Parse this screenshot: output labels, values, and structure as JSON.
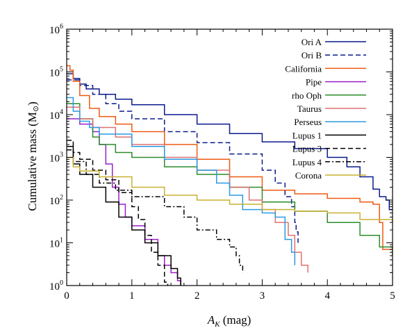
{
  "chart_data": {
    "type": "line",
    "title": "",
    "xlabel": "A",
    "xlabel_sub": "K",
    "xlabel_unit": " (mag)",
    "ylabel": "Cumulative mass (M",
    "ylabel_sun": "⊙",
    "ylabel_close": ")",
    "xlim": [
      0,
      5
    ],
    "ylim": [
      1,
      1000000
    ],
    "yscale": "log",
    "grid": false,
    "legend_position": "top-right",
    "x_ticks": [
      {
        "v": 0,
        "label": "0"
      },
      {
        "v": 1,
        "label": "1"
      },
      {
        "v": 2,
        "label": "2"
      },
      {
        "v": 3,
        "label": "3"
      },
      {
        "v": 4,
        "label": "4"
      },
      {
        "v": 5,
        "label": "5"
      }
    ],
    "y_ticks": [
      {
        "exp": 0,
        "base": "10",
        "sup": "0"
      },
      {
        "exp": 1,
        "base": "10",
        "sup": "1"
      },
      {
        "exp": 2,
        "base": "10",
        "sup": "2"
      },
      {
        "exp": 3,
        "base": "10",
        "sup": "3"
      },
      {
        "exp": 4,
        "base": "10",
        "sup": "4"
      },
      {
        "exp": 5,
        "base": "10",
        "sup": "5"
      },
      {
        "exp": 6,
        "base": "10",
        "sup": "6"
      }
    ],
    "series": [
      {
        "name": "Ori A",
        "color": "#0a1a8c",
        "dash": "solid",
        "points": [
          [
            0,
            90000
          ],
          [
            0.1,
            70000
          ],
          [
            0.2,
            52000
          ],
          [
            0.3,
            40000
          ],
          [
            0.5,
            30000
          ],
          [
            0.75,
            23000
          ],
          [
            1.0,
            17000
          ],
          [
            1.5,
            10000
          ],
          [
            2.0,
            6000
          ],
          [
            2.5,
            3600
          ],
          [
            3.0,
            2300
          ],
          [
            3.5,
            1600
          ],
          [
            4.0,
            1000
          ],
          [
            4.3,
            600
          ],
          [
            4.5,
            350
          ],
          [
            4.7,
            180
          ],
          [
            4.8,
            120
          ],
          [
            4.9,
            100
          ],
          [
            4.95,
            60
          ],
          [
            5.0,
            60
          ]
        ]
      },
      {
        "name": "Ori B",
        "color": "#0a1a8c",
        "dash": "dashed",
        "points": [
          [
            0,
            65000
          ],
          [
            0.2,
            48000
          ],
          [
            0.4,
            30000
          ],
          [
            0.6,
            18000
          ],
          [
            0.8,
            12000
          ],
          [
            1.0,
            8000
          ],
          [
            1.5,
            4000
          ],
          [
            2.0,
            2200
          ],
          [
            2.5,
            1200
          ],
          [
            3.0,
            500
          ],
          [
            3.2,
            250
          ],
          [
            3.35,
            120
          ],
          [
            3.45,
            70
          ],
          [
            3.5,
            30
          ],
          [
            3.52,
            18
          ],
          [
            3.55,
            10
          ]
        ]
      },
      {
        "name": "California",
        "color": "#ee5a12",
        "dash": "solid",
        "points": [
          [
            0,
            140000
          ],
          [
            0.05,
            110000
          ],
          [
            0.1,
            60000
          ],
          [
            0.2,
            28000
          ],
          [
            0.35,
            14000
          ],
          [
            0.5,
            9000
          ],
          [
            0.75,
            6000
          ],
          [
            1.0,
            4000
          ],
          [
            1.5,
            2000
          ],
          [
            2.0,
            900
          ],
          [
            2.5,
            350
          ],
          [
            3.0,
            170
          ],
          [
            3.5,
            140
          ],
          [
            4.0,
            110
          ],
          [
            4.5,
            90
          ],
          [
            4.7,
            80
          ],
          [
            4.8,
            30
          ],
          [
            4.85,
            7
          ],
          [
            5.0,
            6
          ]
        ]
      },
      {
        "name": "Pipe",
        "color": "#9a1ec8",
        "dash": "solid",
        "points": [
          [
            0,
            8000
          ],
          [
            0.2,
            6000
          ],
          [
            0.4,
            4000
          ],
          [
            0.5,
            2000
          ],
          [
            0.6,
            700
          ],
          [
            0.7,
            200
          ],
          [
            0.8,
            80
          ],
          [
            0.9,
            40
          ],
          [
            1.0,
            25
          ],
          [
            1.2,
            12
          ],
          [
            1.4,
            5
          ],
          [
            1.5,
            3
          ],
          [
            1.6,
            2
          ],
          [
            1.7,
            1.3
          ],
          [
            1.75,
            1.0
          ]
        ]
      },
      {
        "name": "rho Oph",
        "color": "#2a8c2a",
        "dash": "solid",
        "points": [
          [
            0,
            18000
          ],
          [
            0.2,
            8000
          ],
          [
            0.4,
            3000
          ],
          [
            0.5,
            2000
          ],
          [
            0.75,
            1300
          ],
          [
            1.0,
            1000
          ],
          [
            1.5,
            600
          ],
          [
            2.0,
            400
          ],
          [
            2.5,
            200
          ],
          [
            3.0,
            90
          ],
          [
            3.5,
            55
          ],
          [
            4.0,
            30
          ],
          [
            4.5,
            15
          ],
          [
            4.8,
            8
          ],
          [
            5.0,
            5
          ]
        ]
      },
      {
        "name": "Taurus",
        "color": "#e07070",
        "dash": "solid",
        "points": [
          [
            0,
            15000
          ],
          [
            0.2,
            8000
          ],
          [
            0.4,
            5000
          ],
          [
            0.75,
            3000
          ],
          [
            1.0,
            2000
          ],
          [
            1.5,
            1000
          ],
          [
            2.0,
            500
          ],
          [
            2.5,
            200
          ],
          [
            2.8,
            100
          ],
          [
            3.0,
            60
          ],
          [
            3.2,
            30
          ],
          [
            3.4,
            15
          ],
          [
            3.5,
            6
          ],
          [
            3.6,
            3
          ],
          [
            3.7,
            2
          ]
        ]
      },
      {
        "name": "Perseus",
        "color": "#2a9ae0",
        "dash": "solid",
        "points": [
          [
            0,
            25000
          ],
          [
            0.1,
            12000
          ],
          [
            0.2,
            7000
          ],
          [
            0.35,
            5000
          ],
          [
            0.5,
            3500
          ],
          [
            1.0,
            1800
          ],
          [
            1.5,
            900
          ],
          [
            2.0,
            500
          ],
          [
            2.3,
            250
          ],
          [
            2.5,
            130
          ],
          [
            2.7,
            60
          ],
          [
            3.0,
            50
          ],
          [
            3.2,
            40
          ],
          [
            3.35,
            12
          ],
          [
            3.45,
            6
          ],
          [
            3.5,
            3
          ]
        ]
      },
      {
        "name": "Lupus 1",
        "color": "#000000",
        "dash": "solid",
        "points": [
          [
            0,
            1800
          ],
          [
            0.1,
            700
          ],
          [
            0.2,
            400
          ],
          [
            0.4,
            200
          ],
          [
            0.6,
            90
          ],
          [
            0.8,
            40
          ],
          [
            1.0,
            20
          ],
          [
            1.2,
            10
          ],
          [
            1.4,
            5
          ],
          [
            1.6,
            2.5
          ],
          [
            1.7,
            1.5
          ],
          [
            1.75,
            1.0
          ]
        ]
      },
      {
        "name": "Lupus 3",
        "color": "#000000",
        "dash": "dashed",
        "points": [
          [
            0,
            2500
          ],
          [
            0.1,
            1300
          ],
          [
            0.2,
            900
          ],
          [
            0.4,
            500
          ],
          [
            0.6,
            300
          ],
          [
            0.8,
            150
          ],
          [
            1.0,
            70
          ],
          [
            1.1,
            35
          ],
          [
            1.2,
            15
          ],
          [
            1.3,
            6
          ],
          [
            1.4,
            3
          ],
          [
            1.5,
            1.2
          ],
          [
            1.55,
            1.0
          ]
        ]
      },
      {
        "name": "Lupus 4",
        "color": "#000000",
        "dash": "dashdot",
        "points": [
          [
            0,
            1500
          ],
          [
            0.1,
            800
          ],
          [
            0.3,
            400
          ],
          [
            0.5,
            250
          ],
          [
            0.75,
            170
          ],
          [
            1.0,
            120
          ],
          [
            1.5,
            70
          ],
          [
            1.8,
            40
          ],
          [
            2.0,
            20
          ],
          [
            2.3,
            12
          ],
          [
            2.5,
            8
          ],
          [
            2.6,
            5
          ],
          [
            2.65,
            3
          ],
          [
            2.7,
            2
          ]
        ]
      },
      {
        "name": "Corona",
        "color": "#c8b030",
        "dash": "solid",
        "points": [
          [
            0,
            1000
          ],
          [
            0.1,
            600
          ],
          [
            0.2,
            480
          ],
          [
            0.5,
            350
          ],
          [
            1.0,
            200
          ],
          [
            1.5,
            130
          ],
          [
            2.0,
            100
          ],
          [
            2.5,
            80
          ],
          [
            3.0,
            60
          ],
          [
            3.5,
            55
          ],
          [
            4.0,
            50
          ],
          [
            4.5,
            35
          ],
          [
            5.0,
            30
          ]
        ]
      }
    ]
  }
}
